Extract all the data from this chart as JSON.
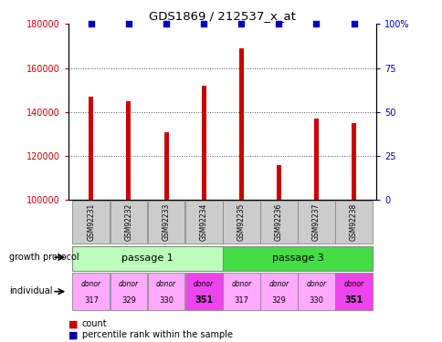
{
  "title": "GDS1869 / 212537_x_at",
  "samples": [
    "GSM92231",
    "GSM92232",
    "GSM92233",
    "GSM92234",
    "GSM92235",
    "GSM92236",
    "GSM92237",
    "GSM92238"
  ],
  "counts": [
    147000,
    145000,
    131000,
    152000,
    169000,
    116000,
    137000,
    135000
  ],
  "percentiles": [
    100,
    100,
    100,
    100,
    100,
    100,
    100,
    100
  ],
  "ylim_left": [
    100000,
    180000
  ],
  "ylim_right": [
    0,
    100
  ],
  "yticks_left": [
    100000,
    120000,
    140000,
    160000,
    180000
  ],
  "yticks_right": [
    0,
    25,
    50,
    75,
    100
  ],
  "yticklabels_left": [
    "100000",
    "120000",
    "140000",
    "160000",
    "180000"
  ],
  "yticklabels_right": [
    "0",
    "25",
    "50",
    "75",
    "100%"
  ],
  "bar_color": "#cc0000",
  "percentile_color": "#0000bb",
  "growth_protocol": [
    "passage 1",
    "passage 3"
  ],
  "growth_protocol_colors": [
    "#bbffbb",
    "#44dd44"
  ],
  "individuals": [
    "donor\n317",
    "donor\n329",
    "donor\n330",
    "donor\n351",
    "donor\n317",
    "donor\n329",
    "donor\n330",
    "donor\n351"
  ],
  "individual_colors": [
    "#ffaaff",
    "#ffaaff",
    "#ffaaff",
    "#ee44ee",
    "#ffaaff",
    "#ffaaff",
    "#ffaaff",
    "#ee44ee"
  ],
  "sample_box_color": "#cccccc",
  "grid_color": "#555555",
  "tick_color_left": "#cc0000",
  "tick_color_right": "#0000bb",
  "bar_width": 0.12
}
